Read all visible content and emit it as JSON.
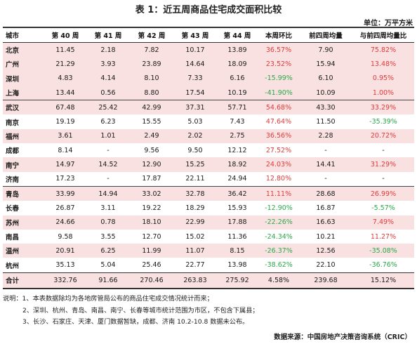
{
  "title": "表 1：近五周商品住宅成交面积比较",
  "unit": "单位：万平方米",
  "headers": [
    "城市",
    "第 40 周",
    "第 41 周",
    "第 42 周",
    "第 43 周",
    "第 44 周",
    "本周环比",
    "前四周均量",
    "与前四周均量比"
  ],
  "rows": [
    {
      "city": "北京",
      "w40": "11.45",
      "w41": "2.18",
      "w42": "7.82",
      "w43": "10.17",
      "w44": "13.89",
      "wow": "36.57%",
      "avg4": "7.90",
      "vs_avg": "75.82%"
    },
    {
      "city": "广州",
      "w40": "21.29",
      "w41": "3.93",
      "w42": "23.89",
      "w43": "14.64",
      "w44": "18.09",
      "wow": "23.52%",
      "avg4": "15.94",
      "vs_avg": "13.48%"
    },
    {
      "city": "深圳",
      "w40": "4.83",
      "w41": "4.14",
      "w42": "8.10",
      "w43": "7.33",
      "w44": "6.16",
      "wow": "-15.99%",
      "avg4": "6.10",
      "vs_avg": "0.95%"
    },
    {
      "city": "上海",
      "w40": "13.44",
      "w41": "0.56",
      "w42": "8.80",
      "w43": "17.54",
      "w44": "10.19",
      "wow": "-41.90%",
      "avg4": "10.09",
      "vs_avg": "1.00%"
    },
    {
      "city": "武汉",
      "w40": "67.48",
      "w41": "25.42",
      "w42": "42.99",
      "w43": "37.31",
      "w44": "57.71",
      "wow": "54.68%",
      "avg4": "43.30",
      "vs_avg": "33.29%"
    },
    {
      "city": "南京",
      "w40": "19.19",
      "w41": "6.23",
      "w42": "15.55",
      "w43": "5.03",
      "w44": "7.43",
      "wow": "47.64%",
      "avg4": "11.50",
      "vs_avg": "-35.39%"
    },
    {
      "city": "福州",
      "w40": "3.61",
      "w41": "1.01",
      "w42": "2.49",
      "w43": "2.02",
      "w44": "2.75",
      "wow": "36.56%",
      "avg4": "2.28",
      "vs_avg": "20.72%"
    },
    {
      "city": "成都",
      "w40": "8.14",
      "w41": "-",
      "w42": "9.56",
      "w43": "9.50",
      "w44": "12.12",
      "wow": "27.52%",
      "avg4": "-",
      "vs_avg": "-"
    },
    {
      "city": "南宁",
      "w40": "14.97",
      "w41": "14.52",
      "w42": "12.90",
      "w43": "15.25",
      "w44": "18.92",
      "wow": "24.03%",
      "avg4": "14.41",
      "vs_avg": "31.29%"
    },
    {
      "city": "济南",
      "w40": "17.23",
      "w41": "-",
      "w42": "17.87",
      "w43": "22.11",
      "w44": "24.94",
      "wow": "12.80%",
      "avg4": "-",
      "vs_avg": "-"
    },
    {
      "city": "青岛",
      "w40": "33.99",
      "w41": "14.94",
      "w42": "33.02",
      "w43": "32.78",
      "w44": "36.42",
      "wow": "11.11%",
      "avg4": "28.68",
      "vs_avg": "26.99%"
    },
    {
      "city": "长春",
      "w40": "26.87",
      "w41": "3.11",
      "w42": "19.22",
      "w43": "18.29",
      "w44": "15.93",
      "wow": "-12.90%",
      "avg4": "16.87",
      "vs_avg": "-5.57%"
    },
    {
      "city": "苏州",
      "w40": "24.66",
      "w41": "0.78",
      "w42": "18.10",
      "w43": "22.99",
      "w44": "17.88",
      "wow": "-22.26%",
      "avg4": "16.63",
      "vs_avg": "7.49%"
    },
    {
      "city": "南昌",
      "w40": "9.58",
      "w41": "3.55",
      "w42": "12.70",
      "w43": "15.02",
      "w44": "11.36",
      "wow": "-24.34%",
      "avg4": "10.21",
      "vs_avg": "11.27%"
    },
    {
      "city": "温州",
      "w40": "20.91",
      "w41": "6.25",
      "w42": "11.99",
      "w43": "11.07",
      "w44": "8.15",
      "wow": "-26.37%",
      "avg4": "12.56",
      "vs_avg": "-35.08%"
    },
    {
      "city": "杭州",
      "w40": "35.13",
      "w41": "5.04",
      "w42": "25.46",
      "w43": "22.77",
      "w44": "13.98",
      "wow": "-38.62%",
      "avg4": "22.10",
      "vs_avg": "-36.76%"
    }
  ],
  "total": {
    "city": "合计",
    "w40": "332.76",
    "w41": "91.66",
    "w42": "270.46",
    "w43": "263.83",
    "w44": "275.92",
    "wow": "4.58%",
    "avg4": "239.68",
    "vs_avg": "15.12%"
  },
  "notes": [
    "说明：1、本表数据除均为各地房管局公布的商品住宅成交情况统计而来；",
    "2、深圳、杭州、青岛、南昌、南宁、长春等城市统计范围为市区，不包含下属县；",
    "3、长沙、石家庄、天津、厦门数据暂缺，成都、济南 10.2-10.8 数据未公布。"
  ],
  "source": "数据来源：中国房地产决策咨询系统（CRIC）",
  "colors": {
    "positive": "#e23a3a",
    "negative": "#2aa84a",
    "row_highlight": "#f9e1e1"
  }
}
